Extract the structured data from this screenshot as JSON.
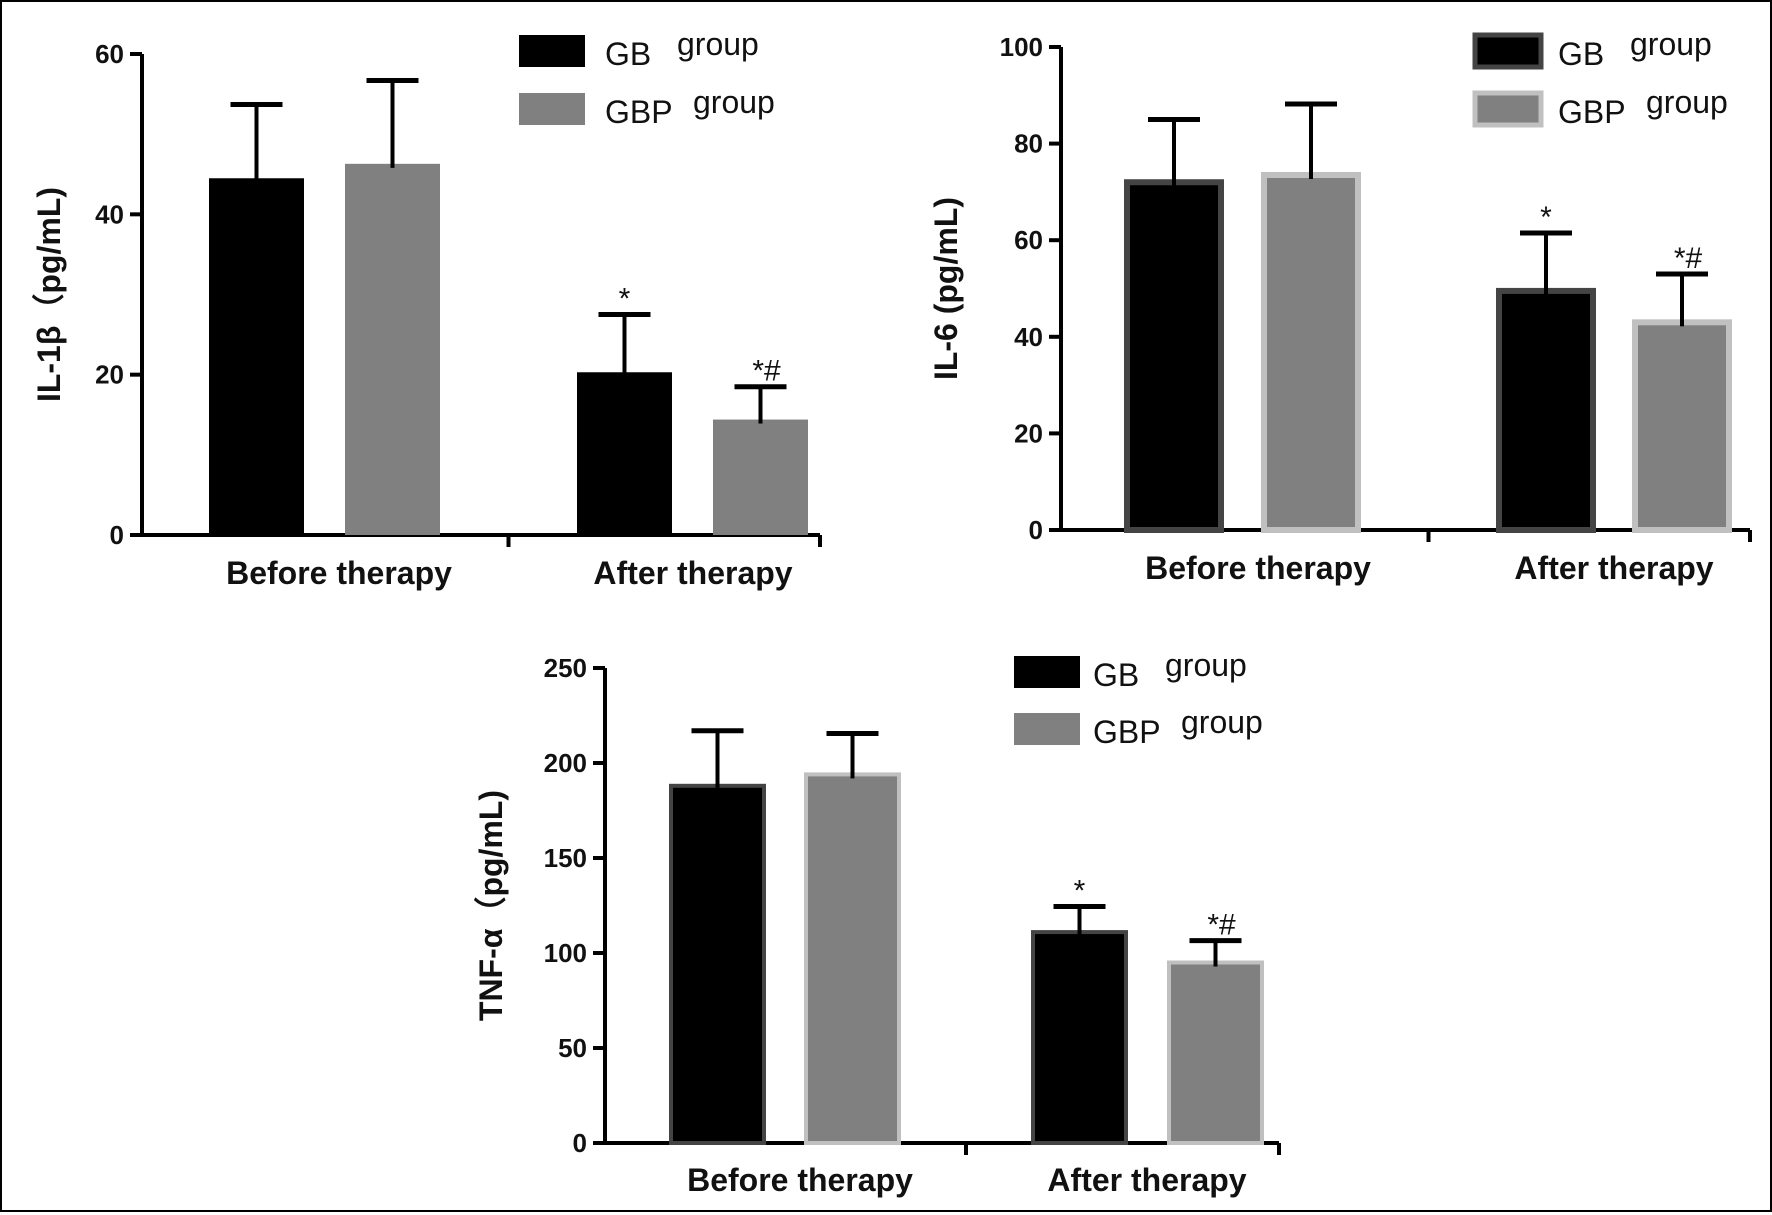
{
  "figure": {
    "colors": {
      "gb_fill": "#000000",
      "gb_border": "#444444",
      "gbp_fill": "#808080",
      "gbp_border": "#c0c0c0",
      "axis": "#000000"
    }
  },
  "chart_data": [
    {
      "type": "bar",
      "title": "",
      "xlabel": "",
      "ylabel": "IL-1β（pg/mL)",
      "categories": [
        "Before therapy",
        "After therapy"
      ],
      "ylim": [
        0,
        60
      ],
      "yticks": [
        0,
        20,
        40,
        60
      ],
      "legend_position": "top-right",
      "series": [
        {
          "name": "GB group",
          "legend": [
            "GB",
            "group"
          ],
          "values": [
            44.5,
            20.3
          ],
          "errors": [
            9.2,
            7.2
          ],
          "annotations": [
            "",
            "*"
          ]
        },
        {
          "name": "GBP group",
          "legend": [
            "GBP",
            "group"
          ],
          "values": [
            46.3,
            14.4
          ],
          "errors": [
            10.4,
            4.1
          ],
          "annotations": [
            "",
            "*#"
          ]
        }
      ]
    },
    {
      "type": "bar",
      "title": "",
      "xlabel": "",
      "ylabel": "IL-6 (pg/mL)",
      "categories": [
        "Before therapy",
        "After therapy"
      ],
      "ylim": [
        0,
        100
      ],
      "yticks": [
        0,
        20,
        40,
        60,
        80,
        100
      ],
      "legend_position": "top-right",
      "series": [
        {
          "name": "GB group",
          "legend": [
            "GB",
            "group"
          ],
          "values": [
            72,
            49.5
          ],
          "errors": [
            13,
            12
          ],
          "annotations": [
            "",
            "*"
          ]
        },
        {
          "name": "GBP group",
          "legend": [
            "GBP",
            "group"
          ],
          "values": [
            73.5,
            43
          ],
          "errors": [
            14.7,
            10
          ],
          "annotations": [
            "",
            "*#"
          ]
        }
      ]
    },
    {
      "type": "bar",
      "title": "",
      "xlabel": "",
      "ylabel": "TNF-α（pg/mL)",
      "categories": [
        "Before therapy",
        "After therapy"
      ],
      "ylim": [
        0,
        250
      ],
      "yticks": [
        0,
        50,
        100,
        150,
        200,
        250
      ],
      "legend_position": "top-right",
      "series": [
        {
          "name": "GB group",
          "legend": [
            "GB",
            "group"
          ],
          "values": [
            188,
            111
          ],
          "errors": [
            29,
            13.5
          ],
          "annotations": [
            "",
            "*"
          ]
        },
        {
          "name": "GBP group",
          "legend": [
            "GBP",
            "group"
          ],
          "values": [
            194,
            95
          ],
          "errors": [
            21.5,
            11.5
          ],
          "annotations": [
            "",
            "*#"
          ]
        }
      ]
    }
  ]
}
